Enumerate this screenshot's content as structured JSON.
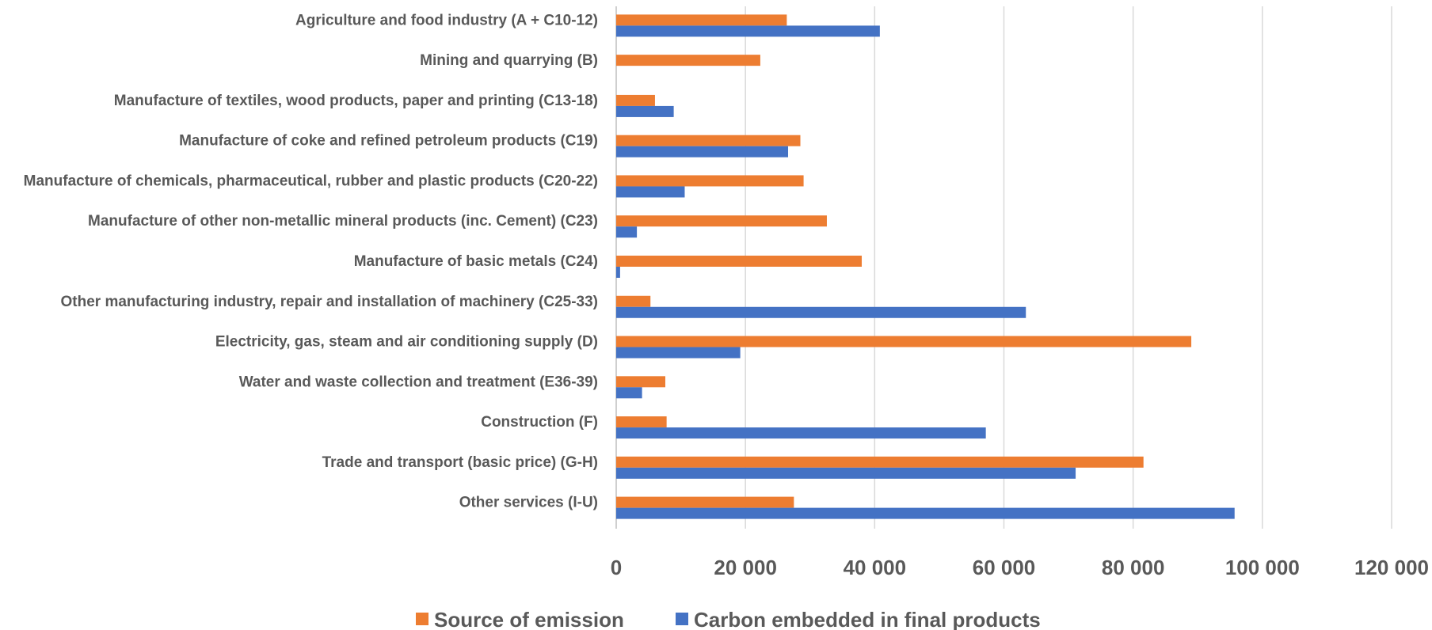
{
  "chart_data": {
    "type": "bar",
    "orientation": "horizontal",
    "categories": [
      "Agriculture and food industry (A + C10-12)",
      "Mining and quarrying (B)",
      "Manufacture of textiles, wood products, paper and printing (C13-18)",
      "Manufacture of coke and refined petroleum products (C19)",
      "Manufacture of chemicals, pharmaceutical, rubber and plastic products (C20-22)",
      "Manufacture of other non-metallic mineral products (inc. Cement) (C23)",
      "Manufacture of basic metals (C24)",
      "Other manufacturing industry, repair and installation of machinery (C25-33)",
      "Electricity, gas, steam and air conditioning supply (D)",
      "Water and waste collection and treatment (E36-39)",
      "Construction (F)",
      "Trade and transport (basic price) (G-H)",
      "Other services (I-U)"
    ],
    "series": [
      {
        "name": "Source of emission",
        "color": "#ED7D31",
        "values": [
          26400,
          22300,
          6000,
          28500,
          29000,
          32600,
          38000,
          5300,
          89000,
          7600,
          7800,
          81600,
          27500
        ]
      },
      {
        "name": "Carbon embedded in final products",
        "color": "#4472C4",
        "values": [
          40800,
          0,
          8900,
          26600,
          10600,
          3200,
          600,
          63400,
          19200,
          4000,
          57200,
          71100,
          95700
        ]
      }
    ],
    "xlim": [
      0,
      120000
    ],
    "ticks": [
      "0",
      "20 000",
      "40 000",
      "60 000",
      "80 000",
      "100 000",
      "120 000"
    ],
    "tick_values": [
      0,
      20000,
      40000,
      60000,
      80000,
      100000,
      120000
    ],
    "grid": true,
    "legend_position": "bottom"
  }
}
